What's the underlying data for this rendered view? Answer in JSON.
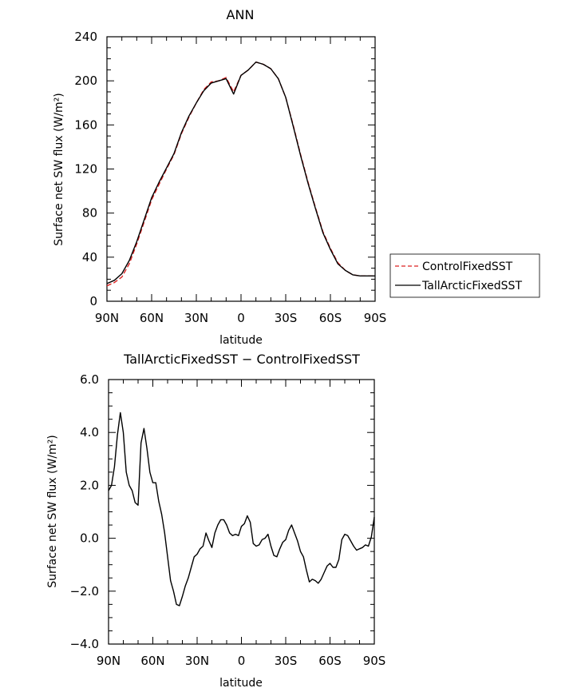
{
  "chart_data": [
    {
      "type": "line",
      "title": "ANN",
      "xlabel": "latitude",
      "ylabel": "Surface net SW flux (W/m²)",
      "x_tick_labels": [
        "90N",
        "60N",
        "30N",
        "0",
        "30S",
        "60S",
        "90S"
      ],
      "y_tick_labels": [
        "0",
        "40",
        "80",
        "120",
        "160",
        "200",
        "240"
      ],
      "xlim": [
        90,
        -90
      ],
      "ylim": [
        0,
        240
      ],
      "legend": {
        "placement": "right",
        "entries": [
          "ControlFixedSST",
          "TallArcticFixedSST"
        ]
      },
      "x": [
        90,
        85,
        80,
        75,
        70,
        65,
        60,
        55,
        50,
        45,
        40,
        35,
        30,
        25,
        20,
        15,
        10,
        5,
        0,
        -5,
        -10,
        -15,
        -20,
        -25,
        -30,
        -35,
        -40,
        -45,
        -50,
        -55,
        -60,
        -65,
        -70,
        -75,
        -80,
        -85,
        -90
      ],
      "series": [
        {
          "name": "ControlFixedSST",
          "color": "#dd2222",
          "dash": true,
          "values": [
            14,
            17,
            22,
            34,
            52,
            72,
            92,
            106,
            120,
            133,
            152,
            167,
            180,
            192,
            199,
            200,
            203,
            190,
            205,
            210,
            217,
            215,
            211,
            202,
            185,
            160,
            133,
            108,
            85,
            63,
            48,
            35,
            28,
            24,
            23,
            23,
            23
          ]
        },
        {
          "name": "TallArcticFixedSST",
          "color": "#000000",
          "dash": false,
          "values": [
            16,
            19,
            25,
            37,
            54,
            74,
            94,
            108,
            121,
            134,
            153,
            168,
            180,
            191,
            198,
            200,
            202,
            188,
            205,
            210,
            217,
            215,
            211,
            202,
            185,
            159,
            132,
            107,
            84,
            62,
            47,
            34,
            28,
            24,
            23,
            23,
            23
          ]
        }
      ]
    },
    {
      "type": "line",
      "title": "TallArcticFixedSST − ControlFixedSST",
      "xlabel": "latitude",
      "ylabel": "Surface net SW flux (W/m²)",
      "x_tick_labels": [
        "90N",
        "60N",
        "30N",
        "0",
        "30S",
        "60S",
        "90S"
      ],
      "y_tick_labels": [
        "−4.0",
        "−2.0",
        "0.0",
        "2.0",
        "4.0",
        "6.0"
      ],
      "xlim": [
        90,
        -90
      ],
      "ylim": [
        -4,
        6
      ],
      "x": [
        90,
        88,
        86,
        84,
        82,
        80,
        78,
        76,
        74,
        72,
        70,
        68,
        66,
        64,
        62,
        60,
        58,
        56,
        54,
        52,
        50,
        48,
        46,
        44,
        42,
        40,
        38,
        36,
        34,
        32,
        30,
        28,
        26,
        24,
        22,
        20,
        18,
        16,
        14,
        12,
        10,
        8,
        6,
        4,
        2,
        0,
        -2,
        -4,
        -6,
        -8,
        -10,
        -12,
        -14,
        -16,
        -18,
        -20,
        -22,
        -24,
        -26,
        -28,
        -30,
        -32,
        -34,
        -36,
        -38,
        -40,
        -42,
        -44,
        -46,
        -48,
        -50,
        -52,
        -54,
        -56,
        -58,
        -60,
        -62,
        -64,
        -66,
        -68,
        -70,
        -72,
        -74,
        -76,
        -78,
        -80,
        -82,
        -84,
        -86,
        -88,
        -90
      ],
      "series": [
        {
          "name": "",
          "color": "#000000",
          "values": [
            1.8,
            2.0,
            2.7,
            3.9,
            4.75,
            4.0,
            2.5,
            2.0,
            1.8,
            1.35,
            1.25,
            3.6,
            4.15,
            3.4,
            2.5,
            2.1,
            2.1,
            1.4,
            0.9,
            0.2,
            -0.7,
            -1.6,
            -2.0,
            -2.5,
            -2.55,
            -2.2,
            -1.8,
            -1.5,
            -1.1,
            -0.7,
            -0.6,
            -0.4,
            -0.3,
            0.2,
            -0.1,
            -0.35,
            0.2,
            0.5,
            0.7,
            0.7,
            0.5,
            0.2,
            0.1,
            0.15,
            0.1,
            0.45,
            0.55,
            0.85,
            0.6,
            -0.2,
            -0.3,
            -0.25,
            -0.05,
            0.0,
            0.15,
            -0.3,
            -0.65,
            -0.7,
            -0.4,
            -0.15,
            -0.05,
            0.3,
            0.5,
            0.2,
            -0.1,
            -0.5,
            -0.7,
            -1.2,
            -1.65,
            -1.55,
            -1.6,
            -1.7,
            -1.55,
            -1.3,
            -1.05,
            -0.95,
            -1.1,
            -1.1,
            -0.8,
            -0.05,
            0.15,
            0.1,
            -0.1,
            -0.3,
            -0.45,
            -0.4,
            -0.35,
            -0.25,
            -0.3,
            0.05,
            0.8
          ]
        }
      ]
    }
  ]
}
